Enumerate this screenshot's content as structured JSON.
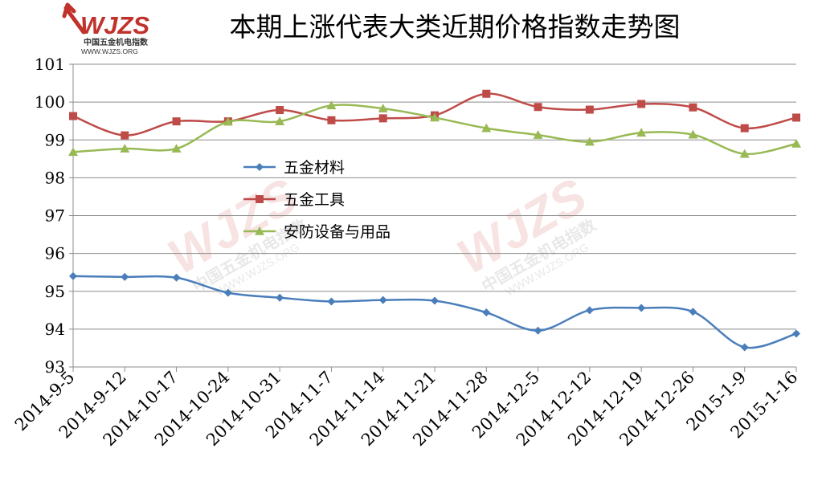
{
  "logo": {
    "brand": "WJZS",
    "cn": "中国五金机电指数",
    "url": "WWW.WJZS.ORG",
    "color": "#c0322b"
  },
  "chart_data": {
    "type": "line",
    "title": "本期上涨代表大类近期价格指数走势图",
    "xlabel": "",
    "ylabel": "",
    "ylim": [
      93,
      101
    ],
    "yticks": [
      93,
      94,
      95,
      96,
      97,
      98,
      99,
      100,
      101
    ],
    "grid": true,
    "legend_position": "center-left",
    "categories": [
      "2014-9-5",
      "2014-9-12",
      "2014-10-17",
      "2014-10-24",
      "2014-10-31",
      "2014-11-7",
      "2014-11-14",
      "2014-11-21",
      "2014-11-28",
      "2014-12-5",
      "2014-12-12",
      "2014-12-19",
      "2014-12-26",
      "2015-1-9",
      "2015-1-16"
    ],
    "series": [
      {
        "name": "五金材料",
        "color": "#4a7ebb",
        "marker": "diamond",
        "values": [
          95.4,
          95.38,
          95.36,
          94.96,
          94.83,
          94.73,
          94.77,
          94.75,
          94.44,
          93.96,
          94.5,
          94.56,
          94.46,
          93.52,
          93.88
        ]
      },
      {
        "name": "五金工具",
        "color": "#be4b48",
        "marker": "square",
        "values": [
          99.63,
          99.12,
          99.49,
          99.49,
          99.79,
          99.52,
          99.57,
          99.65,
          100.22,
          99.87,
          99.8,
          99.95,
          99.86,
          99.31,
          99.59
        ]
      },
      {
        "name": "安防设备与用品",
        "color": "#98b954",
        "marker": "triangle",
        "values": [
          98.68,
          98.77,
          98.77,
          99.48,
          99.49,
          99.91,
          99.83,
          99.59,
          99.31,
          99.13,
          98.95,
          99.19,
          99.14,
          98.63,
          98.9
        ]
      }
    ]
  }
}
